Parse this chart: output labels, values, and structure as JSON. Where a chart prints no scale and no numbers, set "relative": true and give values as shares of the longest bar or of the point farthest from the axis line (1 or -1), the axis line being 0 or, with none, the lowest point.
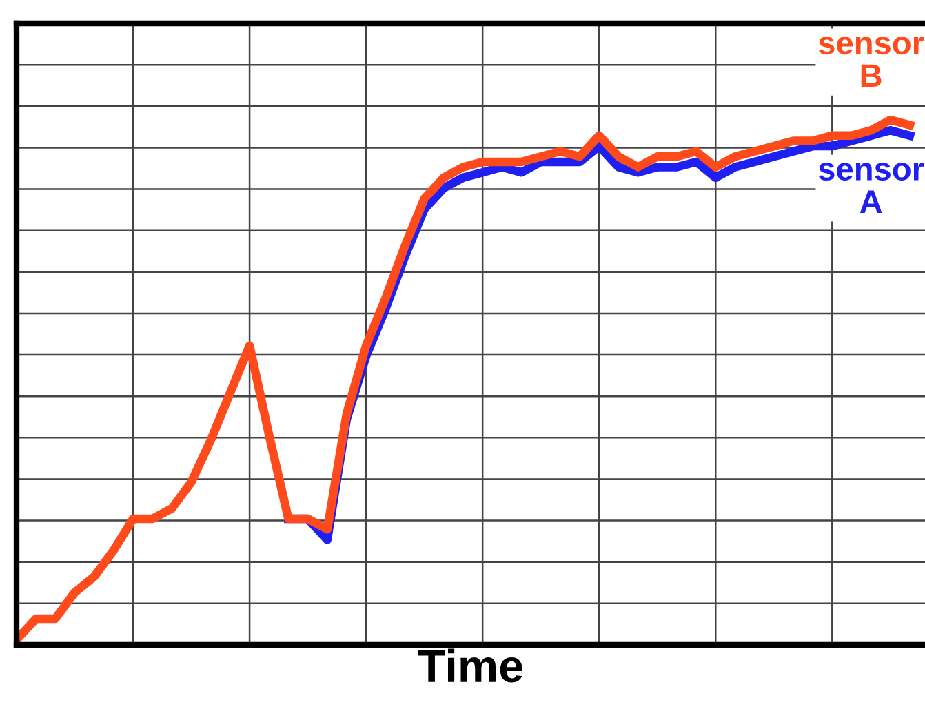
{
  "chart_data": {
    "type": "line",
    "relative": true,
    "xlabel": "Time",
    "grid": true,
    "legend": false,
    "marker": "none",
    "line_style": "solid",
    "categories": [
      null,
      null,
      null,
      null,
      null,
      null,
      null,
      null,
      null,
      null,
      null,
      null,
      null,
      null,
      null,
      null,
      null,
      null,
      null,
      null,
      null,
      null,
      null,
      null,
      null,
      null,
      null,
      null,
      null,
      null,
      null,
      null,
      null,
      null,
      null,
      null,
      null,
      null,
      null,
      null,
      null,
      null,
      null,
      null,
      null,
      null,
      null
    ],
    "series": [
      {
        "name": "sensor A",
        "color": "#1f1fef",
        "values": [
          null,
          null,
          null,
          null,
          null,
          null,
          null,
          null,
          null,
          null,
          null,
          null,
          null,
          null,
          0.24,
          0.24,
          0.2,
          0.43,
          0.55,
          0.64,
          0.74,
          0.83,
          0.87,
          0.89,
          0.9,
          0.91,
          0.9,
          0.92,
          0.92,
          0.92,
          0.95,
          0.91,
          0.9,
          0.91,
          0.91,
          0.92,
          0.89,
          0.91,
          0.92,
          0.93,
          0.94,
          0.95,
          0.95,
          0.96,
          0.97,
          0.98,
          0.97
        ]
      },
      {
        "name": "sensor B",
        "color": "#ff4a1c",
        "values": [
          0.01,
          0.05,
          0.05,
          0.1,
          0.13,
          0.18,
          0.24,
          0.24,
          0.26,
          0.31,
          0.39,
          0.48,
          0.57,
          0.4,
          0.24,
          0.24,
          0.22,
          0.44,
          0.57,
          0.66,
          0.76,
          0.85,
          0.89,
          0.91,
          0.92,
          0.92,
          0.92,
          0.93,
          0.94,
          0.93,
          0.97,
          0.93,
          0.91,
          0.93,
          0.93,
          0.94,
          0.91,
          0.93,
          0.94,
          0.95,
          0.96,
          0.96,
          0.97,
          0.97,
          0.98,
          1,
          0.99
        ]
      }
    ]
  }
}
